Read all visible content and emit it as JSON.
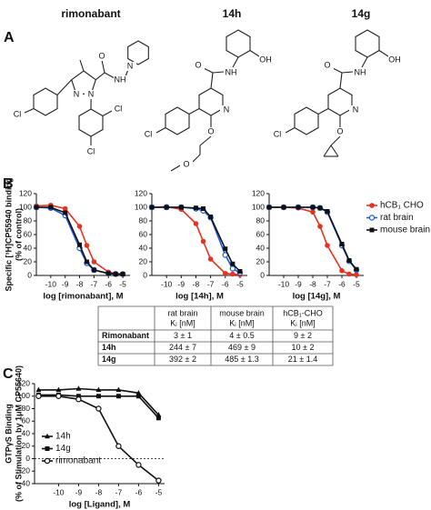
{
  "panel_a": {
    "label": "A",
    "structures": [
      {
        "name": "rimonabant",
        "atoms": [
          "Cl",
          "N",
          "N",
          "O",
          "NH",
          "N",
          "Cl",
          "Cl"
        ]
      },
      {
        "name": "14h",
        "atoms": [
          "O",
          "NH",
          "OH",
          "Cl",
          "N",
          "O",
          "O"
        ]
      },
      {
        "name": "14g",
        "atoms": [
          "O",
          "NH",
          "OH",
          "Cl",
          "N",
          "O"
        ]
      }
    ]
  },
  "table": {
    "columns": [
      {
        "name": "rat brain",
        "unit": "Kᵢ [nM]"
      },
      {
        "name": "mouse brain",
        "unit": "Kᵢ [nM]"
      },
      {
        "name": "hCB₁-CHO",
        "unit": "Kᵢ [nM]"
      }
    ],
    "rows": [
      {
        "label": "Rimonabant",
        "cells": [
          "3 ± 1",
          "4 ± 0.5",
          "9 ± 2"
        ]
      },
      {
        "label": "14h",
        "cells": [
          "244 ± 7",
          "469 ± 9",
          "10 ± 2"
        ]
      },
      {
        "label": "14g",
        "cells": [
          "392 ± 2",
          "485 ± 1.3",
          "21 ± 1.4"
        ]
      }
    ]
  },
  "chart_data": [
    {
      "type": "line",
      "panel": "B",
      "ylabel": [
        "Specific [³H]CP55940 binding",
        "(% of control)"
      ],
      "xlabel": "log [rimonabant], M",
      "x": [
        -11,
        -10,
        -9,
        -8,
        -7.5,
        -7,
        -6,
        -5.5,
        -5
      ],
      "series": [
        {
          "color": "#e8321e",
          "marker": "circle",
          "values": [
            102,
            103,
            98,
            72,
            44,
            20,
            5,
            3,
            2
          ]
        },
        {
          "color": "#1f5bd6",
          "marker": "open-circle",
          "values": [
            100,
            99,
            88,
            40,
            18,
            8,
            3,
            2,
            2
          ]
        },
        {
          "color": "#111111",
          "marker": "square",
          "values": [
            100,
            100,
            92,
            45,
            20,
            8,
            3,
            2,
            2
          ]
        }
      ],
      "xlim": [
        -11,
        -4.5
      ],
      "ylim": [
        0,
        120
      ],
      "xticks": [
        -10,
        -9,
        -8,
        -7,
        -6,
        -5
      ],
      "yticks": [
        0,
        20,
        40,
        60,
        80,
        100,
        120
      ]
    },
    {
      "type": "line",
      "xlabel": "log [14h], M",
      "x": [
        -11,
        -10,
        -9,
        -8,
        -7.5,
        -7,
        -6,
        -5.5,
        -5
      ],
      "series": [
        {
          "color": "#e8321e",
          "marker": "circle",
          "values": [
            100,
            101,
            97,
            76,
            50,
            24,
            3,
            2,
            1
          ]
        },
        {
          "color": "#1f5bd6",
          "marker": "open-circle",
          "values": [
            100,
            100,
            100,
            98,
            95,
            85,
            30,
            10,
            4
          ]
        },
        {
          "color": "#111111",
          "marker": "square",
          "values": [
            100,
            100,
            100,
            99,
            98,
            86,
            39,
            17,
            6
          ]
        }
      ],
      "xlim": [
        -11,
        -4.5
      ],
      "ylim": [
        0,
        120
      ],
      "xticks": [
        -10,
        -9,
        -8,
        -7,
        -6,
        -5
      ],
      "yticks": [
        0,
        20,
        40,
        60,
        80,
        100,
        120
      ]
    },
    {
      "type": "line",
      "xlabel": "log [14g], M",
      "legend": "outside-right",
      "x": [
        -11,
        -10,
        -9,
        -8,
        -7.5,
        -7,
        -6,
        -5.5,
        -5
      ],
      "series": [
        {
          "name": "hCB₁ CHO",
          "color": "#e8321e",
          "marker": "circle",
          "values": [
            100,
            100,
            99,
            93,
            72,
            44,
            7,
            2,
            1
          ]
        },
        {
          "name": "rat brain",
          "color": "#1f5bd6",
          "marker": "open-circle",
          "values": [
            100,
            100,
            100,
            100,
            99,
            93,
            44,
            21,
            8
          ]
        },
        {
          "name": "mouse brain",
          "color": "#111111",
          "marker": "square",
          "values": [
            100,
            100,
            100,
            100,
            99,
            94,
            46,
            22,
            9
          ]
        }
      ],
      "xlim": [
        -11,
        -4.5
      ],
      "ylim": [
        0,
        120
      ],
      "xticks": [
        -10,
        -9,
        -8,
        -7,
        -6,
        -5
      ],
      "yticks": [
        0,
        20,
        40,
        60,
        80,
        100,
        120
      ]
    },
    {
      "type": "line",
      "panel": "C",
      "ylabel": [
        "GTPγS Binding",
        "(% of Stimulation by 1μM CP55640)"
      ],
      "xlabel": "log [Ligand], M",
      "legend": "center-left",
      "x": [
        -11,
        -10,
        -9,
        -8,
        -7,
        -6,
        -5
      ],
      "hline": 0,
      "series": [
        {
          "name": "14h",
          "color": "#111111",
          "marker": "triangle",
          "values": [
            110,
            110,
            112,
            110,
            110,
            105,
            70
          ]
        },
        {
          "name": "14g",
          "color": "#111111",
          "marker": "square",
          "values": [
            102,
            102,
            100,
            100,
            100,
            100,
            65
          ]
        },
        {
          "name": "rimonabant",
          "color": "#111111",
          "marker": "open-circle",
          "values": [
            100,
            100,
            95,
            80,
            20,
            -10,
            -35
          ]
        }
      ],
      "xlim": [
        -11.2,
        -4.7
      ],
      "ylim": [
        -40,
        120
      ],
      "xticks": [
        -10,
        -9,
        -8,
        -7,
        -6,
        -5
      ],
      "yticks": [
        -40,
        -20,
        0,
        20,
        40,
        60,
        80,
        100,
        120
      ]
    }
  ]
}
